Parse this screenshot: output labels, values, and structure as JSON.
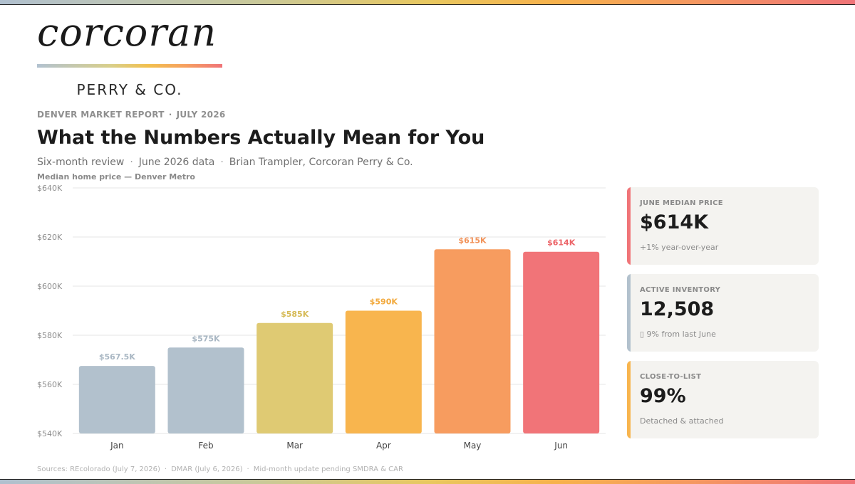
{
  "brand": {
    "wordmark": "corcoran",
    "sub": "PERRY & CO."
  },
  "report": {
    "eyebrow_left": "DENVER MARKET REPORT",
    "eyebrow_right": "JULY 2026",
    "headline": "What the Numbers Actually Mean for You",
    "sub_items": [
      "Six-month review",
      "June 2026 data",
      "Brian Trampler, Corcoran Perry & Co."
    ]
  },
  "chart_data": {
    "type": "bar",
    "title": "Median home price — Denver Metro",
    "categories": [
      "Jan",
      "Feb",
      "Mar",
      "Apr",
      "May",
      "Jun"
    ],
    "values": [
      567500,
      575000,
      585000,
      590000,
      615000,
      614000
    ],
    "data_labels": [
      "$567.5K",
      "$575K",
      "$585K",
      "$590K",
      "$615K",
      "$614K"
    ],
    "bar_colors": [
      "#b2c1cd",
      "#b2c1cd",
      "#dfca73",
      "#f8b54e",
      "#f79c5f",
      "#f17478"
    ],
    "label_colors": [
      "#a9b7c3",
      "#a9b7c3",
      "#d6ba55",
      "#f2a93c",
      "#f2935a",
      "#ec6468"
    ],
    "ylim": [
      540000,
      640000
    ],
    "yticks": [
      540000,
      560000,
      580000,
      600000,
      620000,
      640000
    ],
    "ytick_labels": [
      "$540K",
      "$560K",
      "$580K",
      "$600K",
      "$620K",
      "$640K"
    ],
    "grid": true
  },
  "cards": [
    {
      "label": "JUNE MEDIAN PRICE",
      "value": "$614K",
      "note": "+1% year-over-year",
      "accent": "#f07478"
    },
    {
      "label": "ACTIVE INVENTORY",
      "value": "12,508",
      "note": "▯ 9% from last June",
      "accent": "#b2c1cd"
    },
    {
      "label": "CLOSE-TO-LIST",
      "value": "99%",
      "note": "Detached & attached",
      "accent": "#f8b54e"
    }
  ],
  "sources": [
    "Sources: REcolorado (July 7, 2026)",
    "DMAR (July 6, 2026)",
    "Mid-month update pending SMDRA & CAR"
  ]
}
